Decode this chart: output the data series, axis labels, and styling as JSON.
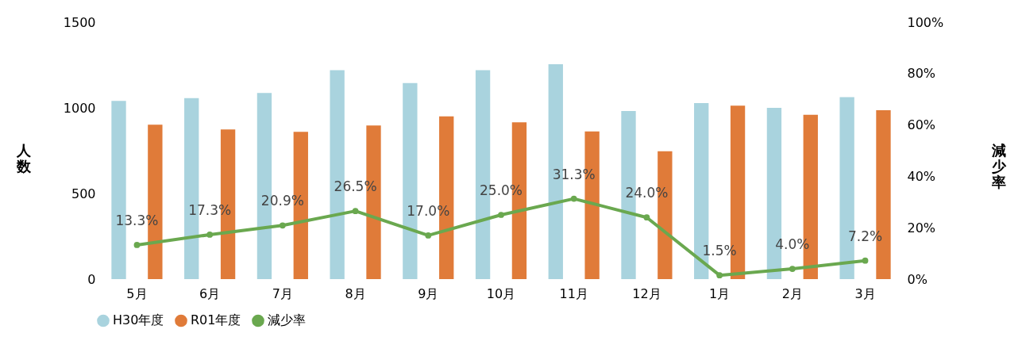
{
  "chart_data": {
    "type": "bar",
    "ylabel": "人数",
    "y2label": "減少率",
    "categories": [
      "5月",
      "6月",
      "7月",
      "8月",
      "9月",
      "10月",
      "11月",
      "12月",
      "1月",
      "2月",
      "3月"
    ],
    "series": [
      {
        "name": "H30年度",
        "color": "#a9d3de",
        "values": [
          1040,
          1057,
          1087,
          1220,
          1145,
          1220,
          1255,
          982,
          1028,
          1000,
          1063
        ]
      },
      {
        "name": "R01年度",
        "color": "#e07b39",
        "values": [
          902,
          874,
          860,
          897,
          950,
          915,
          862,
          746,
          1013,
          960,
          986
        ]
      },
      {
        "name": "減少率",
        "type": "line",
        "axis": "y2",
        "color": "#6aa84f",
        "marker": "circle",
        "values": [
          13.3,
          17.3,
          20.9,
          26.5,
          17.0,
          25.0,
          31.3,
          24.0,
          1.5,
          4.0,
          7.2
        ],
        "value_labels": [
          "13.3%",
          "17.3%",
          "20.9%",
          "26.5%",
          "17.0%",
          "25.0%",
          "31.3%",
          "24.0%",
          "1.5%",
          "4.0%",
          "7.2%"
        ]
      }
    ],
    "ylim": [
      0,
      1500
    ],
    "yticks": [
      0,
      500,
      1000,
      1500
    ],
    "y2lim": [
      0,
      100
    ],
    "y2ticks": [
      {
        "value": 0,
        "label": "0%"
      },
      {
        "value": 20,
        "label": "20%"
      },
      {
        "value": 40,
        "label": "40%"
      },
      {
        "value": 60,
        "label": "60%"
      },
      {
        "value": 80,
        "label": "80%"
      },
      {
        "value": 100,
        "label": "100%"
      }
    ],
    "grid": false,
    "legend": "bottom"
  }
}
